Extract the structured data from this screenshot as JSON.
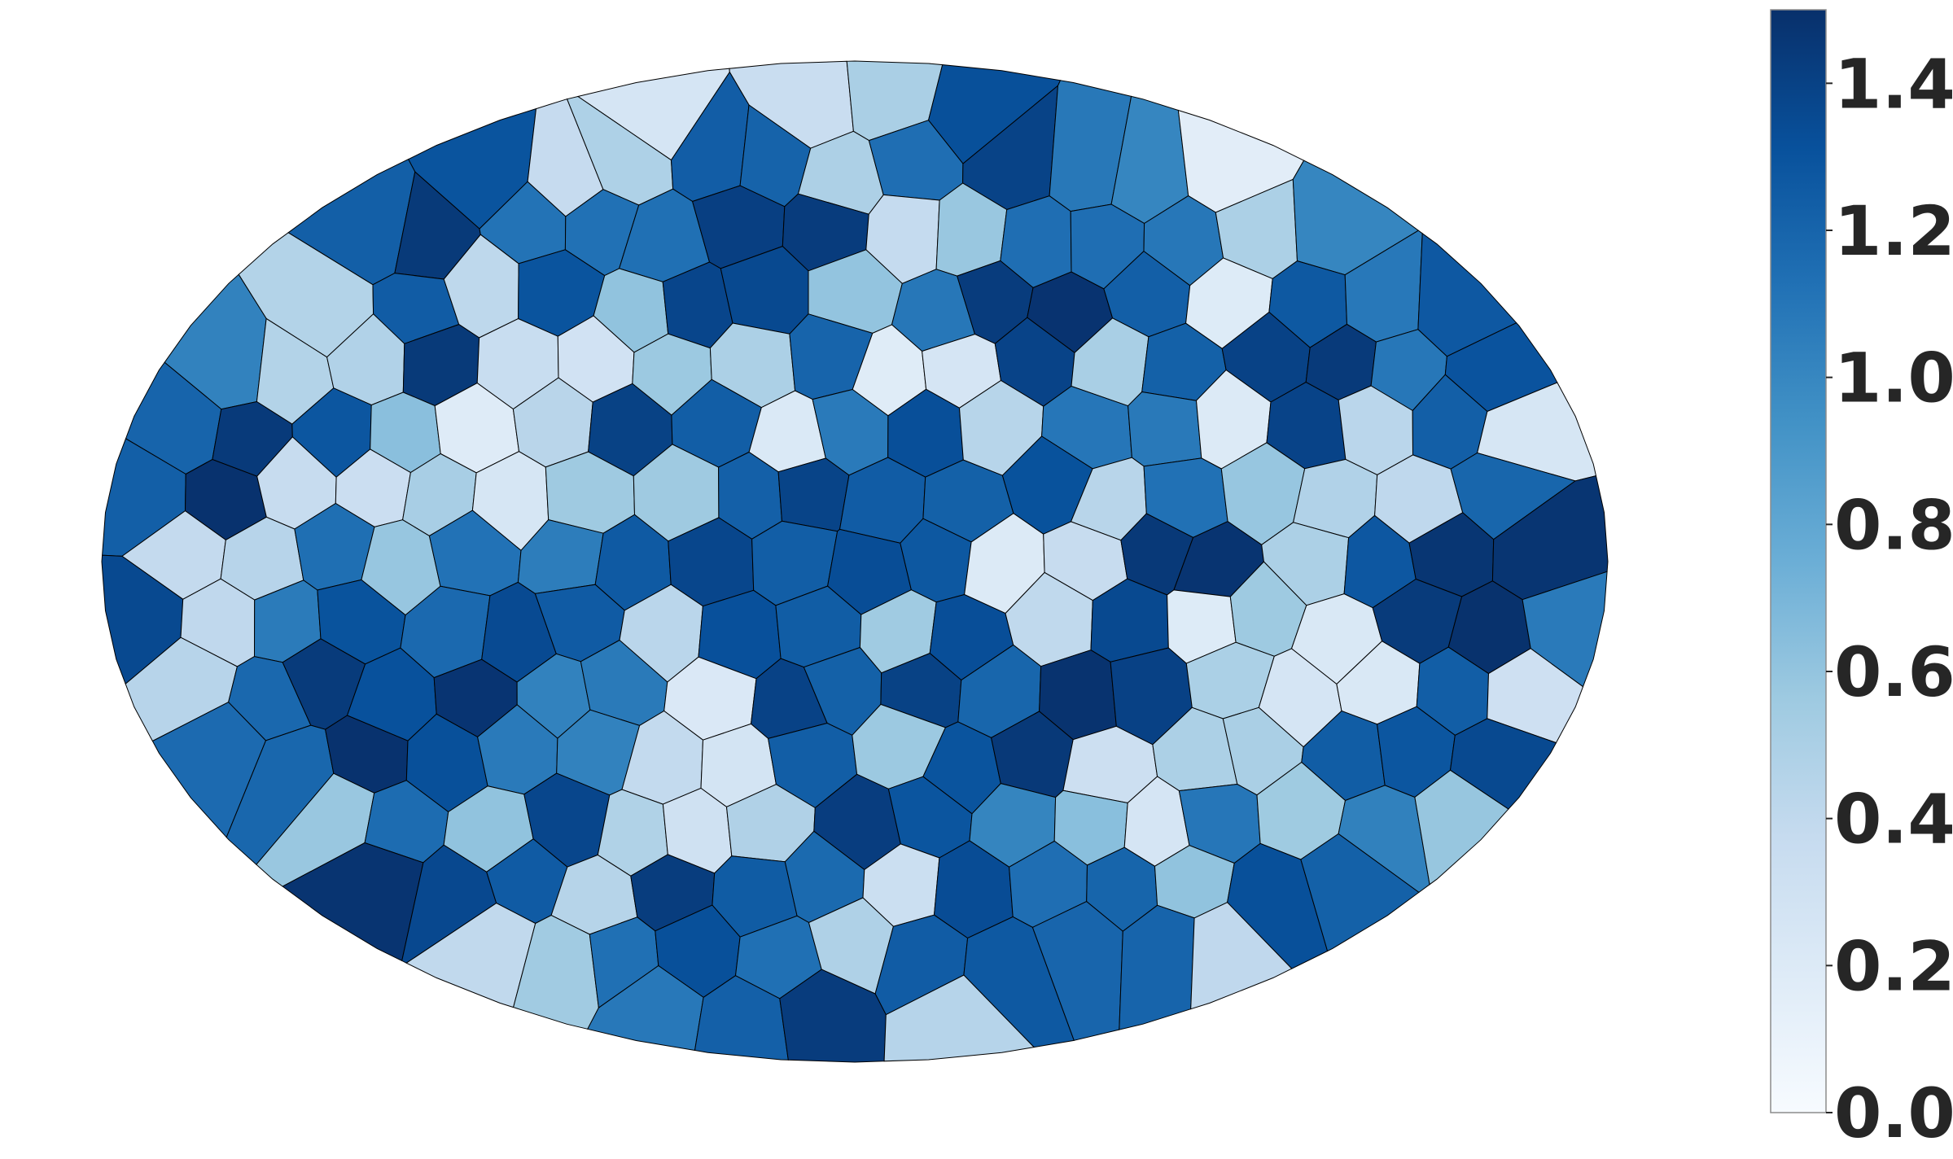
{
  "chart_data": {
    "type": "heatmap",
    "title": "",
    "xlabel": "",
    "ylabel": "",
    "colormap": "Blues",
    "colorbar": {
      "range": [
        0.0,
        1.5
      ],
      "ticks": [
        0.0,
        0.2,
        0.4,
        0.6,
        0.8,
        1.0,
        1.2,
        1.4
      ],
      "tick_labels": [
        "0.0",
        "0.2",
        "0.4",
        "0.6",
        "0.8",
        "1.0",
        "1.2",
        "1.4"
      ],
      "placement": "right"
    },
    "grid": false,
    "axes_visible": false,
    "map_shape": "ellipse of Voronoi cells",
    "cell_edge_color": "#000000",
    "colors": {
      "background": "#ffffff",
      "text": "#262626",
      "stops": [
        "#f7fbff",
        "#deebf7",
        "#c6dbef",
        "#9ecae1",
        "#6baed6",
        "#4292c6",
        "#2171b5",
        "#08519c",
        "#08306b"
      ]
    }
  }
}
